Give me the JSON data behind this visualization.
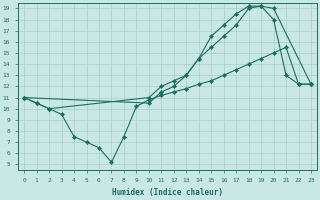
{
  "xlabel": "Humidex (Indice chaleur)",
  "xlim": [
    -0.5,
    23.5
  ],
  "ylim": [
    4.5,
    19.5
  ],
  "xticks": [
    0,
    1,
    2,
    3,
    4,
    5,
    6,
    7,
    8,
    9,
    10,
    11,
    12,
    13,
    14,
    15,
    16,
    17,
    18,
    19,
    20,
    21,
    22,
    23
  ],
  "yticks": [
    5,
    6,
    7,
    8,
    9,
    10,
    11,
    12,
    13,
    14,
    15,
    16,
    17,
    18,
    19
  ],
  "bg_color": "#c9e8e4",
  "line_color": "#1b6e62",
  "grid_color": "#a8cfc9",
  "line1_x": [
    0,
    1,
    2,
    10,
    11,
    12,
    13,
    14,
    15,
    16,
    17,
    18,
    19,
    20,
    21,
    22,
    23
  ],
  "line1_y": [
    11,
    10.5,
    10,
    11,
    12,
    12.5,
    13,
    14.5,
    16.5,
    17.5,
    18.5,
    19.2,
    19.2,
    18.0,
    13.0,
    12.2,
    12.2
  ],
  "line2_x": [
    0,
    10,
    11,
    12,
    13,
    14,
    15,
    16,
    17,
    18,
    19,
    20,
    23
  ],
  "line2_y": [
    11,
    10.5,
    11.5,
    12.0,
    13.0,
    14.5,
    15.5,
    16.5,
    17.5,
    19.0,
    19.2,
    19.0,
    12.2
  ],
  "line3_x": [
    0,
    1,
    2,
    3,
    4,
    5,
    6,
    7,
    8,
    9,
    10,
    11,
    12,
    13,
    14,
    15,
    16,
    17,
    18,
    19,
    20,
    21,
    22,
    23
  ],
  "line3_y": [
    11,
    10.5,
    10,
    9.5,
    7.5,
    7.0,
    6.5,
    5.2,
    7.5,
    10.2,
    10.8,
    11.2,
    11.5,
    11.8,
    12.2,
    12.5,
    13.0,
    13.5,
    14.0,
    14.5,
    15.0,
    15.5,
    12.2,
    12.2
  ]
}
